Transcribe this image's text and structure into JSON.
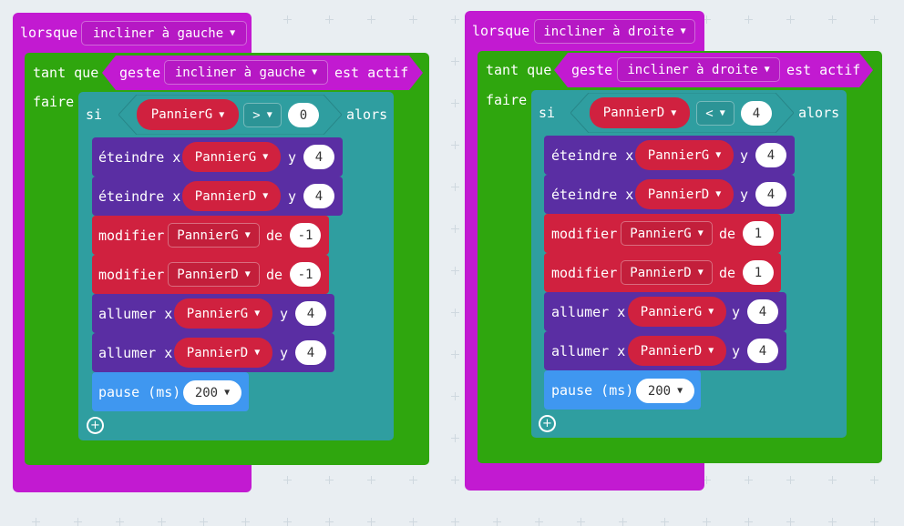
{
  "colors": {
    "magenta": "#c21ad1",
    "green": "#2fa60e",
    "teal": "#2f9ea0",
    "purple": "#5a2ea3",
    "red": "#d0213f",
    "blue": "#3f97f0",
    "canvas": "#e9eef2"
  },
  "left": {
    "event_label": "lorsque",
    "event_option": "incliner à gauche",
    "while_label": "tant que",
    "gesture_label": "geste",
    "gesture_option": "incliner à gauche",
    "active_label": "est actif",
    "do_label": "faire",
    "if_label": "si",
    "cond_var": "PannierG",
    "cond_op": ">",
    "cond_value": "0",
    "then_label": "alors",
    "unplot1_label": "éteindre x",
    "unplot1_var": "PannierG",
    "unplot1_y_label": "y",
    "unplot1_y": "4",
    "unplot2_label": "éteindre x",
    "unplot2_var": "PannierD",
    "unplot2_y_label": "y",
    "unplot2_y": "4",
    "change1_label": "modifier",
    "change1_var": "PannierG",
    "change1_by": "de",
    "change1_value": "-1",
    "change2_label": "modifier",
    "change2_var": "PannierD",
    "change2_by": "de",
    "change2_value": "-1",
    "plot1_label": "allumer x",
    "plot1_var": "PannierG",
    "plot1_y_label": "y",
    "plot1_y": "4",
    "plot2_label": "allumer x",
    "plot2_var": "PannierD",
    "plot2_y_label": "y",
    "plot2_y": "4",
    "pause_label": "pause (ms)",
    "pause_value": "200"
  },
  "right": {
    "event_label": "lorsque",
    "event_option": "incliner à droite",
    "while_label": "tant que",
    "gesture_label": "geste",
    "gesture_option": "incliner à droite",
    "active_label": "est actif",
    "do_label": "faire",
    "if_label": "si",
    "cond_var": "PannierD",
    "cond_op": "<",
    "cond_value": "4",
    "then_label": "alors",
    "unplot1_label": "éteindre x",
    "unplot1_var": "PannierG",
    "unplot1_y_label": "y",
    "unplot1_y": "4",
    "unplot2_label": "éteindre x",
    "unplot2_var": "PannierD",
    "unplot2_y_label": "y",
    "unplot2_y": "4",
    "change1_label": "modifier",
    "change1_var": "PannierG",
    "change1_by": "de",
    "change1_value": "1",
    "change2_label": "modifier",
    "change2_var": "PannierD",
    "change2_by": "de",
    "change2_value": "1",
    "plot1_label": "allumer x",
    "plot1_var": "PannierG",
    "plot1_y_label": "y",
    "plot1_y": "4",
    "plot2_label": "allumer x",
    "plot2_var": "PannierD",
    "plot2_y_label": "y",
    "plot2_y": "4",
    "pause_label": "pause (ms)",
    "pause_value": "200"
  },
  "icons": {
    "add": "plus-circle-icon",
    "dropdown": "caret-down-icon"
  }
}
